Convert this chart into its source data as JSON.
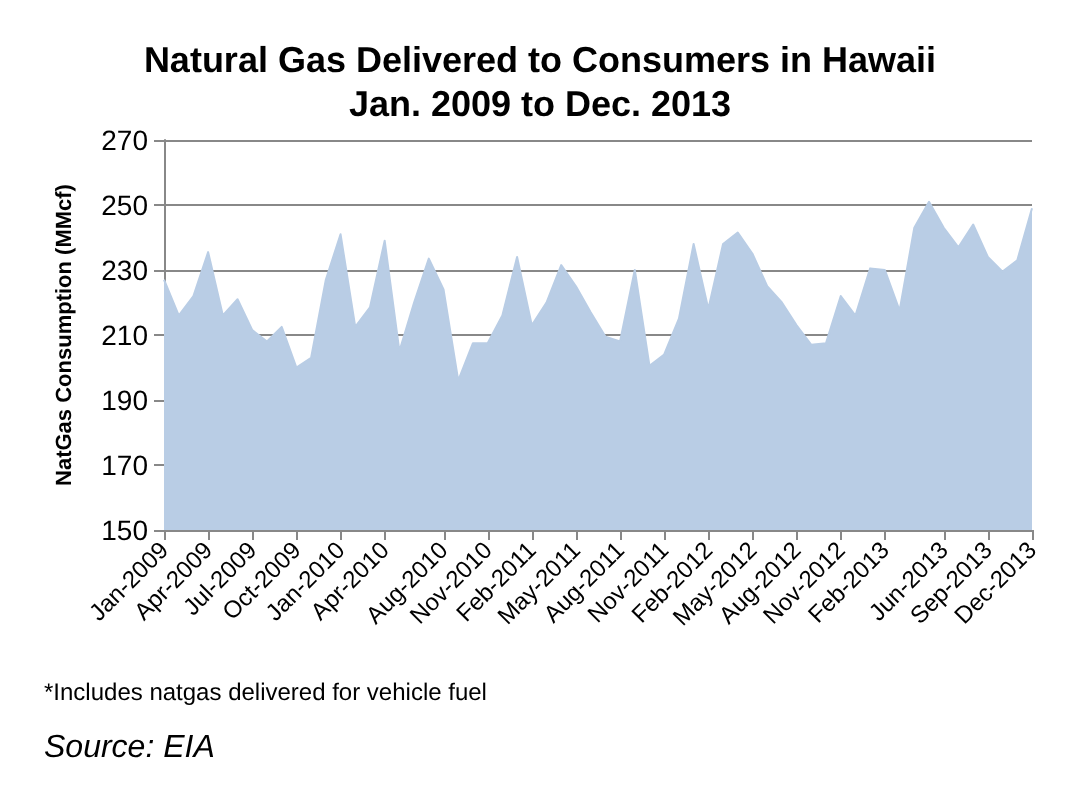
{
  "chart_data": {
    "type": "area",
    "title": "Natural Gas Delivered to Consumers in Hawaii\nJan. 2009 to Dec. 2013",
    "ylabel": "NatGas Consumption (MMcf)",
    "categories": [
      "Jan-2009",
      null,
      null,
      "Apr-2009",
      null,
      null,
      "Jul-2009",
      null,
      null,
      "Oct-2009",
      null,
      null,
      "Jan-2010",
      null,
      null,
      "Apr-2010",
      null,
      null,
      null,
      "Aug-2010",
      null,
      null,
      "Nov-2010",
      null,
      null,
      "Feb-2011",
      null,
      null,
      "May-2011",
      null,
      null,
      "Aug-2011",
      null,
      null,
      "Nov-2011",
      null,
      null,
      "Feb-2012",
      null,
      null,
      "May-2012",
      null,
      null,
      "Aug-2012",
      null,
      null,
      "Nov-2012",
      null,
      null,
      "Feb-2013",
      null,
      null,
      null,
      "Jun-2013",
      null,
      null,
      "Sep-2013",
      null,
      null,
      "Dec-2013"
    ],
    "values": [
      227,
      216,
      222,
      235.5,
      216,
      221,
      211.5,
      208,
      212.5,
      200,
      203,
      227,
      241,
      212.5,
      218.5,
      239,
      205,
      220,
      233.5,
      224,
      196,
      207.5,
      207.5,
      216,
      234,
      213,
      220,
      231.5,
      225,
      217,
      209.5,
      208,
      230,
      200.5,
      204,
      215,
      238,
      218,
      238,
      241.5,
      235,
      225,
      220,
      213,
      207,
      207.5,
      222,
      216,
      230.5,
      230,
      217.5,
      243,
      251,
      243,
      237,
      244,
      234,
      229.5,
      233,
      249
    ],
    "color": "#b9cde5",
    "ylim": [
      150,
      270
    ],
    "yticks": [
      150,
      170,
      190,
      210,
      230,
      250,
      270
    ],
    "grid": "y",
    "marker": "none",
    "annotations": [
      "*Includes natgas delivered for vehicle fuel",
      "Source: EIA"
    ]
  }
}
